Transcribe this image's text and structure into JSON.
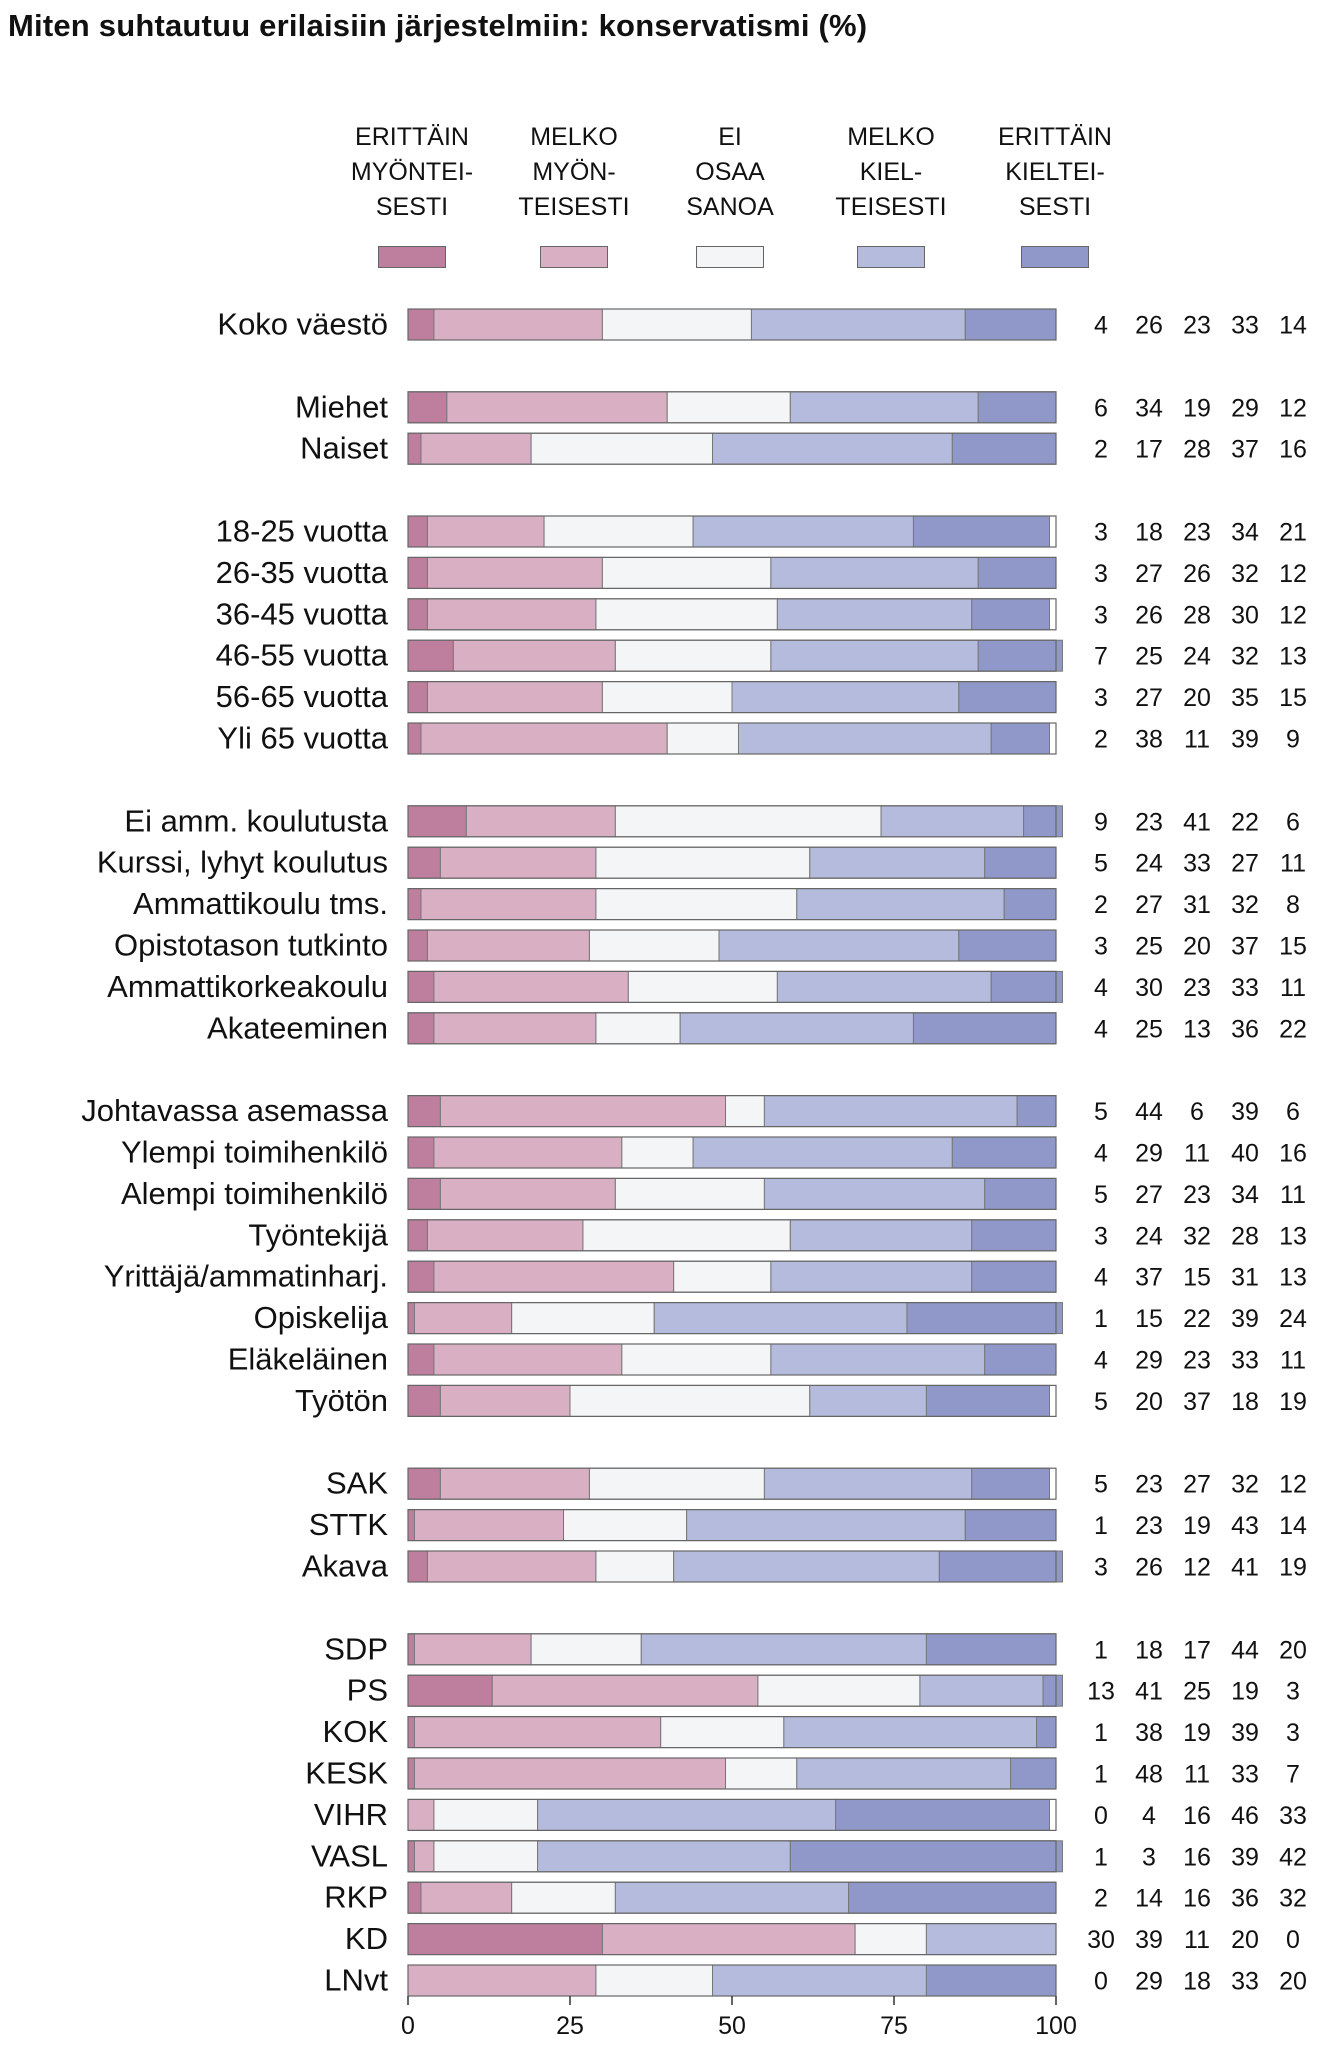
{
  "chart_data": {
    "type": "bar",
    "stacked": true,
    "orientation": "horizontal",
    "title": "Miten suhtautuu erilaisiin järjestelmiin: konservatismi (%)",
    "xlim": [
      0,
      100
    ],
    "xticks": [
      0,
      25,
      50,
      75,
      100
    ],
    "legend_position": "top",
    "series": [
      {
        "name": "ERITTÄIN\nMYÖNTEI-\nSESTI",
        "color": "#bd7f9d"
      },
      {
        "name": "MELKO\nMYÖN-\nTEISESTI",
        "color": "#d9afc3"
      },
      {
        "name": "EI\nOSAA\nSANOA",
        "color": "#f4f5f7"
      },
      {
        "name": "MELKO\nKIEL-\nTEISESTI",
        "color": "#b4bbdd"
      },
      {
        "name": "ERITTÄIN\nKIELTEI-\nSESTI",
        "color": "#8f98c9"
      }
    ],
    "groups": [
      {
        "rows": [
          {
            "label": "Koko väestö",
            "values": [
              4,
              26,
              23,
              33,
              14
            ]
          }
        ]
      },
      {
        "rows": [
          {
            "label": "Miehet",
            "values": [
              6,
              34,
              19,
              29,
              12
            ]
          },
          {
            "label": "Naiset",
            "values": [
              2,
              17,
              28,
              37,
              16
            ]
          }
        ]
      },
      {
        "rows": [
          {
            "label": "18-25 vuotta",
            "values": [
              3,
              18,
              23,
              34,
              21
            ]
          },
          {
            "label": "26-35 vuotta",
            "values": [
              3,
              27,
              26,
              32,
              12
            ]
          },
          {
            "label": "36-45 vuotta",
            "values": [
              3,
              26,
              28,
              30,
              12
            ]
          },
          {
            "label": "46-55 vuotta",
            "values": [
              7,
              25,
              24,
              32,
              13
            ]
          },
          {
            "label": "56-65 vuotta",
            "values": [
              3,
              27,
              20,
              35,
              15
            ]
          },
          {
            "label": "Yli 65 vuotta",
            "values": [
              2,
              38,
              11,
              39,
              9
            ]
          }
        ]
      },
      {
        "rows": [
          {
            "label": "Ei amm. koulutusta",
            "values": [
              9,
              23,
              41,
              22,
              6
            ]
          },
          {
            "label": "Kurssi, lyhyt koulutus",
            "values": [
              5,
              24,
              33,
              27,
              11
            ]
          },
          {
            "label": "Ammattikoulu tms.",
            "values": [
              2,
              27,
              31,
              32,
              8
            ]
          },
          {
            "label": "Opistotason tutkinto",
            "values": [
              3,
              25,
              20,
              37,
              15
            ]
          },
          {
            "label": "Ammattikorkeakoulu",
            "values": [
              4,
              30,
              23,
              33,
              11
            ]
          },
          {
            "label": "Akateeminen",
            "values": [
              4,
              25,
              13,
              36,
              22
            ]
          }
        ]
      },
      {
        "rows": [
          {
            "label": "Johtavassa asemassa",
            "values": [
              5,
              44,
              6,
              39,
              6
            ]
          },
          {
            "label": "Ylempi toimihenkilö",
            "values": [
              4,
              29,
              11,
              40,
              16
            ]
          },
          {
            "label": "Alempi toimihenkilö",
            "values": [
              5,
              27,
              23,
              34,
              11
            ]
          },
          {
            "label": "Työntekijä",
            "values": [
              3,
              24,
              32,
              28,
              13
            ]
          },
          {
            "label": "Yrittäjä/ammatinharj.",
            "values": [
              4,
              37,
              15,
              31,
              13
            ]
          },
          {
            "label": "Opiskelija",
            "values": [
              1,
              15,
              22,
              39,
              24
            ]
          },
          {
            "label": "Eläkeläinen",
            "values": [
              4,
              29,
              23,
              33,
              11
            ]
          },
          {
            "label": "Työtön",
            "values": [
              5,
              20,
              37,
              18,
              19
            ]
          }
        ]
      },
      {
        "rows": [
          {
            "label": "SAK",
            "values": [
              5,
              23,
              27,
              32,
              12
            ]
          },
          {
            "label": "STTK",
            "values": [
              1,
              23,
              19,
              43,
              14
            ]
          },
          {
            "label": "Akava",
            "values": [
              3,
              26,
              12,
              41,
              19
            ]
          }
        ]
      },
      {
        "rows": [
          {
            "label": "SDP",
            "values": [
              1,
              18,
              17,
              44,
              20
            ]
          },
          {
            "label": "PS",
            "values": [
              13,
              41,
              25,
              19,
              3
            ]
          },
          {
            "label": "KOK",
            "values": [
              1,
              38,
              19,
              39,
              3
            ]
          },
          {
            "label": "KESK",
            "values": [
              1,
              48,
              11,
              33,
              7
            ]
          },
          {
            "label": "VIHR",
            "values": [
              0,
              4,
              16,
              46,
              33
            ]
          },
          {
            "label": "VASL",
            "values": [
              1,
              3,
              16,
              39,
              42
            ]
          },
          {
            "label": "RKP",
            "values": [
              2,
              14,
              16,
              36,
              32
            ]
          },
          {
            "label": "KD",
            "values": [
              30,
              39,
              11,
              20,
              0
            ]
          },
          {
            "label": "LNvt",
            "values": [
              0,
              29,
              18,
              33,
              20
            ]
          }
        ]
      }
    ]
  }
}
